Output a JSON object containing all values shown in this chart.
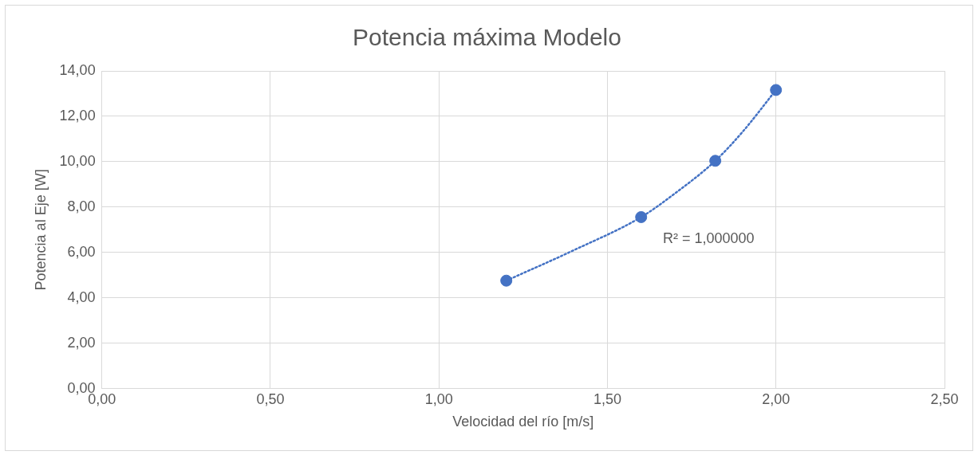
{
  "chart_data": {
    "type": "scatter",
    "title": "Potencia máxima Modelo",
    "xlabel": "Velocidad del río [m/s]",
    "ylabel": "Potencia al Eje [W]",
    "xlim": [
      0,
      2.5
    ],
    "xticks": [
      {
        "value": 0,
        "label": "0,00"
      },
      {
        "value": 0.5,
        "label": "0,50"
      },
      {
        "value": 1,
        "label": "1,00"
      },
      {
        "value": 1.5,
        "label": "1,50"
      },
      {
        "value": 2,
        "label": "2,00"
      },
      {
        "value": 2.5,
        "label": "2,50"
      }
    ],
    "ylim": [
      0,
      14
    ],
    "yticks": [
      {
        "value": 0,
        "label": "0,00"
      },
      {
        "value": 2,
        "label": "2,00"
      },
      {
        "value": 4,
        "label": "4,00"
      },
      {
        "value": 6,
        "label": "6,00"
      },
      {
        "value": 8,
        "label": "8,00"
      },
      {
        "value": 10,
        "label": "10,00"
      },
      {
        "value": 12,
        "label": "12,00"
      },
      {
        "value": 14,
        "label": "14,00"
      }
    ],
    "grid": true,
    "legend": false,
    "series": [
      {
        "type": "line",
        "color": "#4472c4",
        "marker": "none",
        "line_style": "dotted",
        "x": [
          1.2,
          1.4,
          1.6,
          1.7,
          1.82,
          1.9,
          2.0
        ],
        "values": [
          4.76,
          6.1,
          7.56,
          8.6,
          10.04,
          11.3,
          13.16
        ]
      },
      {
        "color": "#4472c4",
        "marker": "circle",
        "x": [
          1.2,
          1.6,
          1.82,
          2.0
        ],
        "values": [
          4.76,
          7.56,
          10.04,
          13.16
        ]
      }
    ],
    "annotations": [
      "R² = 1,000000"
    ]
  }
}
